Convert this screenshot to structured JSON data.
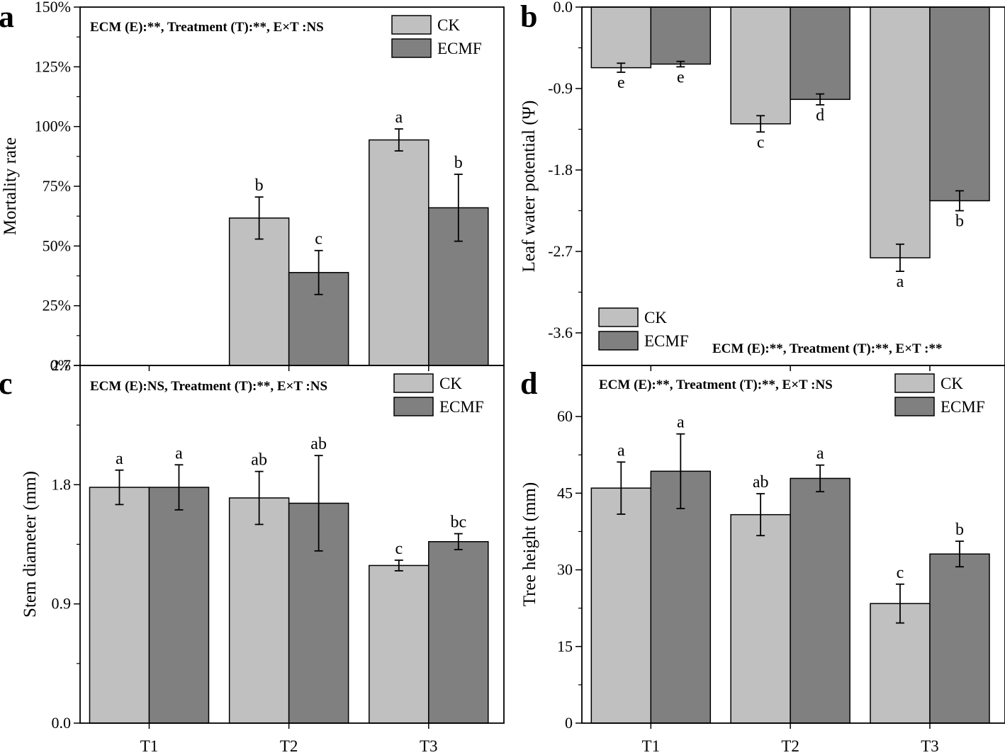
{
  "colors": {
    "CK": "#c0c0c0",
    "ECMF": "#808080",
    "frame": "#000000"
  },
  "categories": [
    "T1",
    "T2",
    "T3"
  ],
  "chart_data": [
    {
      "panel": "a",
      "type": "bar",
      "ylabel": "Mortality rate",
      "ylim": [
        0,
        150
      ],
      "yticks": [
        "0%",
        "25%",
        "50%",
        "75%",
        "100%",
        "125%",
        "150%"
      ],
      "ytick_values": [
        0,
        25,
        50,
        75,
        100,
        125,
        150
      ],
      "stat_text": "ECM (E):**, Treatment (T):**, E×T :NS",
      "legend": [
        "CK",
        "ECMF"
      ],
      "legend_position": "top-right",
      "categories": [
        "T1",
        "T2",
        "T3"
      ],
      "show_category_labels": false,
      "series": [
        {
          "name": "CK",
          "values": [
            0,
            61.7,
            94.4
          ],
          "errors": [
            0,
            8.8,
            4.6
          ],
          "letters": [
            "",
            "b",
            "a"
          ]
        },
        {
          "name": "ECMF",
          "values": [
            0,
            38.9,
            66.0
          ],
          "errors": [
            0,
            9.2,
            14.0
          ],
          "letters": [
            "",
            "c",
            "b"
          ]
        }
      ]
    },
    {
      "panel": "b",
      "type": "bar",
      "ylabel": "Leaf water potential (Ψ)",
      "ylim": [
        -3.96,
        0
      ],
      "yticks": [
        "0.0",
        "-0.9",
        "-1.8",
        "-2.7",
        "-3.6"
      ],
      "ytick_values": [
        0,
        -0.9,
        -1.8,
        -2.7,
        -3.6
      ],
      "stat_text": "ECM (E):**, Treatment (T):**, E×T :**",
      "legend": [
        "CK",
        "ECMF"
      ],
      "legend_position": "bottom-left",
      "categories": [
        "T1",
        "T2",
        "T3"
      ],
      "show_category_labels": false,
      "series": [
        {
          "name": "CK",
          "values": [
            -0.67,
            -1.29,
            -2.77
          ],
          "errors": [
            0.05,
            0.09,
            0.15
          ],
          "letters": [
            "e",
            "c",
            "a"
          ]
        },
        {
          "name": "ECMF",
          "values": [
            -0.63,
            -1.02,
            -2.14
          ],
          "errors": [
            0.03,
            0.06,
            0.11
          ],
          "letters": [
            "e",
            "d",
            "b"
          ]
        }
      ]
    },
    {
      "panel": "c",
      "type": "bar",
      "ylabel": "Stem diameter (mm)",
      "ylim": [
        0,
        2.7
      ],
      "yticks": [
        "0.0",
        "0.9",
        "1.8",
        "2.7"
      ],
      "ytick_values": [
        0,
        0.9,
        1.8,
        2.7
      ],
      "stat_text": "ECM (E):NS, Treatment (T):**, E×T :NS",
      "legend": [
        "CK",
        "ECMF"
      ],
      "legend_position": "top-right",
      "categories": [
        "T1",
        "T2",
        "T3"
      ],
      "show_category_labels": true,
      "series": [
        {
          "name": "CK",
          "values": [
            1.78,
            1.7,
            1.19
          ],
          "errors": [
            0.13,
            0.2,
            0.04
          ],
          "letters": [
            "a",
            "ab",
            "c"
          ]
        },
        {
          "name": "ECMF",
          "values": [
            1.78,
            1.66,
            1.37
          ],
          "errors": [
            0.17,
            0.36,
            0.06
          ],
          "letters": [
            "a",
            "ab",
            "bc"
          ]
        }
      ]
    },
    {
      "panel": "d",
      "type": "bar",
      "ylabel": "Tree height (mm)",
      "ylim": [
        0,
        70
      ],
      "yticks": [
        "0",
        "15",
        "30",
        "45",
        "60"
      ],
      "ytick_values": [
        0,
        15,
        30,
        45,
        60
      ],
      "stat_text": "ECM (E):**, Treatment (T):**, E×T :NS",
      "legend": [
        "CK",
        "ECMF"
      ],
      "legend_position": "top-right",
      "categories": [
        "T1",
        "T2",
        "T3"
      ],
      "show_category_labels": true,
      "series": [
        {
          "name": "CK",
          "values": [
            46.0,
            40.8,
            23.4
          ],
          "errors": [
            5.1,
            4.1,
            3.8
          ],
          "letters": [
            "a",
            "ab",
            "c"
          ]
        },
        {
          "name": "ECMF",
          "values": [
            49.3,
            47.9,
            33.1
          ],
          "errors": [
            7.3,
            2.6,
            2.5
          ],
          "letters": [
            "a",
            "a",
            "b"
          ]
        }
      ]
    }
  ]
}
